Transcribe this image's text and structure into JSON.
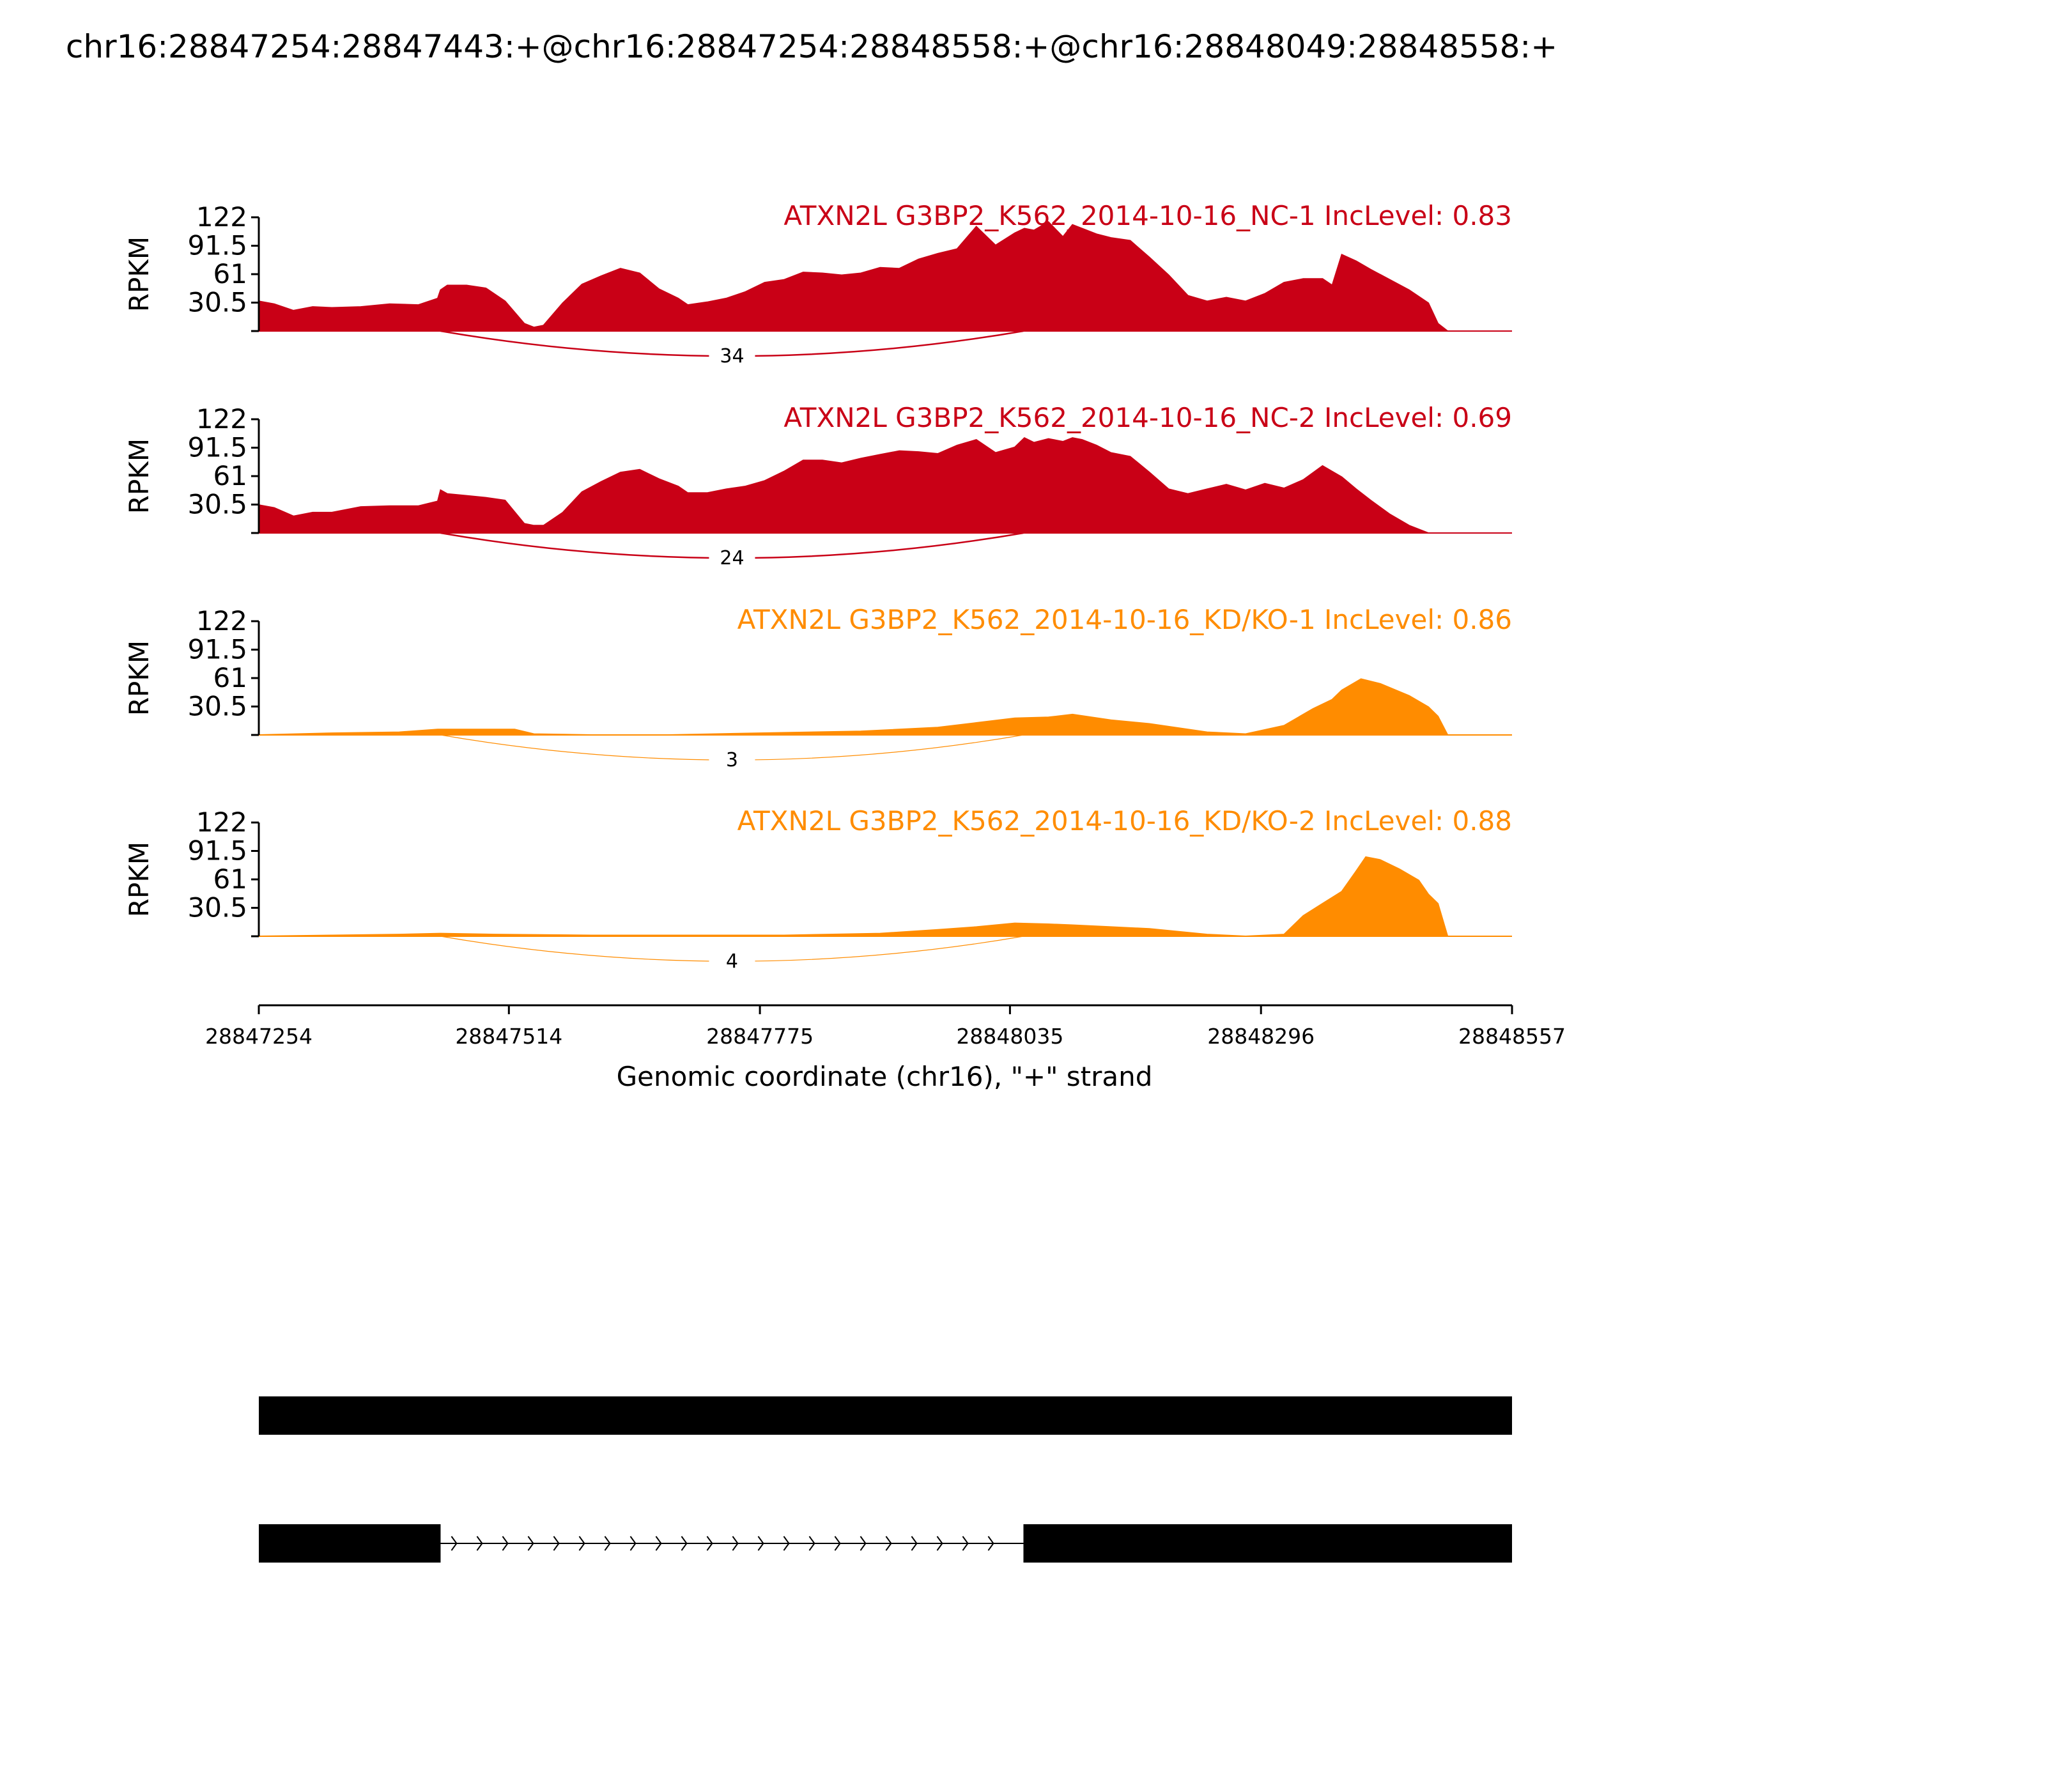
{
  "figure": {
    "title": "chr16:28847254:28847443:+@chr16:28847254:28848558:+@chr16:28848049:28848558:+"
  },
  "chart_data": {
    "type": "area",
    "x_label": "Genomic coordinate (chr16), \"+\" strand",
    "x_range": [
      28847254,
      28848557
    ],
    "x_ticks": [
      "28847254",
      "28847514",
      "28847775",
      "28848035",
      "28848296",
      "28848557"
    ],
    "y_label": "RPKM",
    "y_range": [
      0,
      122
    ],
    "y_ticks": [
      "122",
      "91.5",
      "61",
      "30.5"
    ],
    "junction": {
      "start": 28847443,
      "end": 28848049
    },
    "series": [
      {
        "name": "ATXN2L G3BP2_K562_2014-10-16_NC-1 IncLevel: 0.83",
        "color": "#C90016",
        "junction_count": "34",
        "x": [
          28847254,
          28847270,
          28847290,
          28847310,
          28847330,
          28847360,
          28847390,
          28847420,
          28847440,
          28847443,
          28847450,
          28847470,
          28847490,
          28847510,
          28847530,
          28847540,
          28847550,
          28847570,
          28847590,
          28847610,
          28847630,
          28847650,
          28847670,
          28847690,
          28847700,
          28847720,
          28847740,
          28847760,
          28847780,
          28847800,
          28847820,
          28847840,
          28847860,
          28847880,
          28847900,
          28847920,
          28847940,
          28847960,
          28847980,
          28848000,
          28848020,
          28848040,
          28848050,
          28848060,
          28848075,
          28848090,
          28848100,
          28848110,
          28848125,
          28848140,
          28848160,
          28848180,
          28848200,
          28848220,
          28848240,
          28848260,
          28848280,
          28848300,
          28848320,
          28848340,
          28848360,
          28848370,
          28848380,
          28848395,
          28848410,
          28848430,
          28848450,
          28848470,
          28848480,
          28848490,
          28848500,
          28848510,
          28848520,
          28848530,
          28848557
        ],
        "y": [
          32,
          29,
          22,
          26,
          25,
          26,
          29,
          28,
          35,
          44,
          49,
          49,
          46,
          32,
          8,
          4,
          6,
          30,
          50,
          59,
          67,
          62,
          45,
          35,
          28,
          31,
          35,
          42,
          52,
          55,
          63,
          62,
          60,
          62,
          68,
          67,
          77,
          83,
          88,
          112,
          92,
          105,
          110,
          108,
          117,
          101,
          114,
          110,
          104,
          100,
          97,
          79,
          60,
          38,
          32,
          36,
          32,
          40,
          52,
          56,
          56,
          49,
          82,
          75,
          66,
          55,
          44,
          30,
          8,
          0,
          0,
          0,
          0,
          0,
          0
        ]
      },
      {
        "name": "ATXN2L G3BP2_K562_2014-10-16_NC-2 IncLevel: 0.69",
        "color": "#C90016",
        "junction_count": "24",
        "x": [
          28847254,
          28847270,
          28847290,
          28847310,
          28847330,
          28847360,
          28847390,
          28847420,
          28847440,
          28847443,
          28847450,
          28847470,
          28847490,
          28847510,
          28847530,
          28847540,
          28847550,
          28847570,
          28847590,
          28847610,
          28847630,
          28847650,
          28847670,
          28847690,
          28847700,
          28847720,
          28847740,
          28847760,
          28847780,
          28847800,
          28847820,
          28847840,
          28847860,
          28847880,
          28847900,
          28847920,
          28847940,
          28847960,
          28847980,
          28848000,
          28848020,
          28848040,
          28848050,
          28848060,
          28848075,
          28848090,
          28848100,
          28848110,
          28848125,
          28848140,
          28848160,
          28848180,
          28848200,
          28848220,
          28848240,
          28848260,
          28848280,
          28848300,
          28848320,
          28848340,
          28848360,
          28848370,
          28848380,
          28848395,
          28848410,
          28848430,
          28848450,
          28848470,
          28848480,
          28848490,
          28848500,
          28848510,
          28848520,
          28848530,
          28848557
        ],
        "y": [
          30,
          27,
          18,
          22,
          22,
          28,
          29,
          29,
          34,
          46,
          42,
          40,
          38,
          35,
          10,
          8,
          8,
          22,
          44,
          55,
          65,
          68,
          58,
          50,
          43,
          43,
          47,
          50,
          56,
          66,
          78,
          78,
          75,
          80,
          84,
          88,
          87,
          85,
          94,
          100,
          86,
          92,
          102,
          97,
          101,
          98,
          102,
          100,
          94,
          86,
          82,
          65,
          47,
          42,
          47,
          52,
          46,
          53,
          48,
          57,
          72,
          66,
          60,
          47,
          35,
          20,
          8,
          0,
          0,
          0,
          0,
          0,
          0,
          0,
          0
        ]
      },
      {
        "name": "ATXN2L G3BP2_K562_2014-10-16_KD/KO-1 IncLevel: 0.86",
        "color": "#FF8C00",
        "junction_count": "3",
        "x": [
          28847254,
          28847330,
          28847400,
          28847440,
          28847443,
          28847520,
          28847540,
          28847600,
          28847680,
          28847775,
          28847880,
          28847960,
          28848000,
          28848040,
          28848075,
          28848100,
          28848140,
          28848180,
          28848240,
          28848280,
          28848320,
          28848350,
          28848370,
          28848380,
          28848400,
          28848420,
          28848450,
          28848470,
          28848480,
          28848490,
          28848557
        ],
        "y": [
          0,
          2,
          3,
          6,
          6,
          6,
          1,
          0,
          0,
          2,
          4,
          8,
          13,
          18,
          19,
          22,
          16,
          12,
          3,
          1,
          10,
          28,
          38,
          48,
          60,
          55,
          42,
          30,
          20,
          0,
          0
        ]
      },
      {
        "name": "ATXN2L G3BP2_K562_2014-10-16_KD/KO-2 IncLevel: 0.88",
        "color": "#FF8C00",
        "junction_count": "4",
        "x": [
          28847254,
          28847330,
          28847400,
          28847443,
          28847500,
          28847600,
          28847700,
          28847800,
          28847900,
          28847960,
          28848000,
          28848040,
          28848075,
          28848100,
          28848140,
          28848180,
          28848240,
          28848280,
          28848320,
          28848340,
          28848360,
          28848380,
          28848395,
          28848405,
          28848420,
          28848440,
          28848460,
          28848470,
          28848480,
          28848490,
          28848557
        ],
        "y": [
          0,
          1,
          2,
          3,
          2,
          1,
          1,
          1,
          3,
          7,
          10,
          14,
          13,
          12,
          10,
          8,
          2,
          0,
          2,
          22,
          35,
          48,
          70,
          85,
          82,
          72,
          60,
          45,
          35,
          0,
          0
        ]
      }
    ],
    "gene_models": [
      {
        "exons": [
          [
            28847254,
            28848557
          ]
        ]
      },
      {
        "exons": [
          [
            28847254,
            28847443
          ],
          [
            28848049,
            28848557
          ]
        ]
      }
    ]
  }
}
